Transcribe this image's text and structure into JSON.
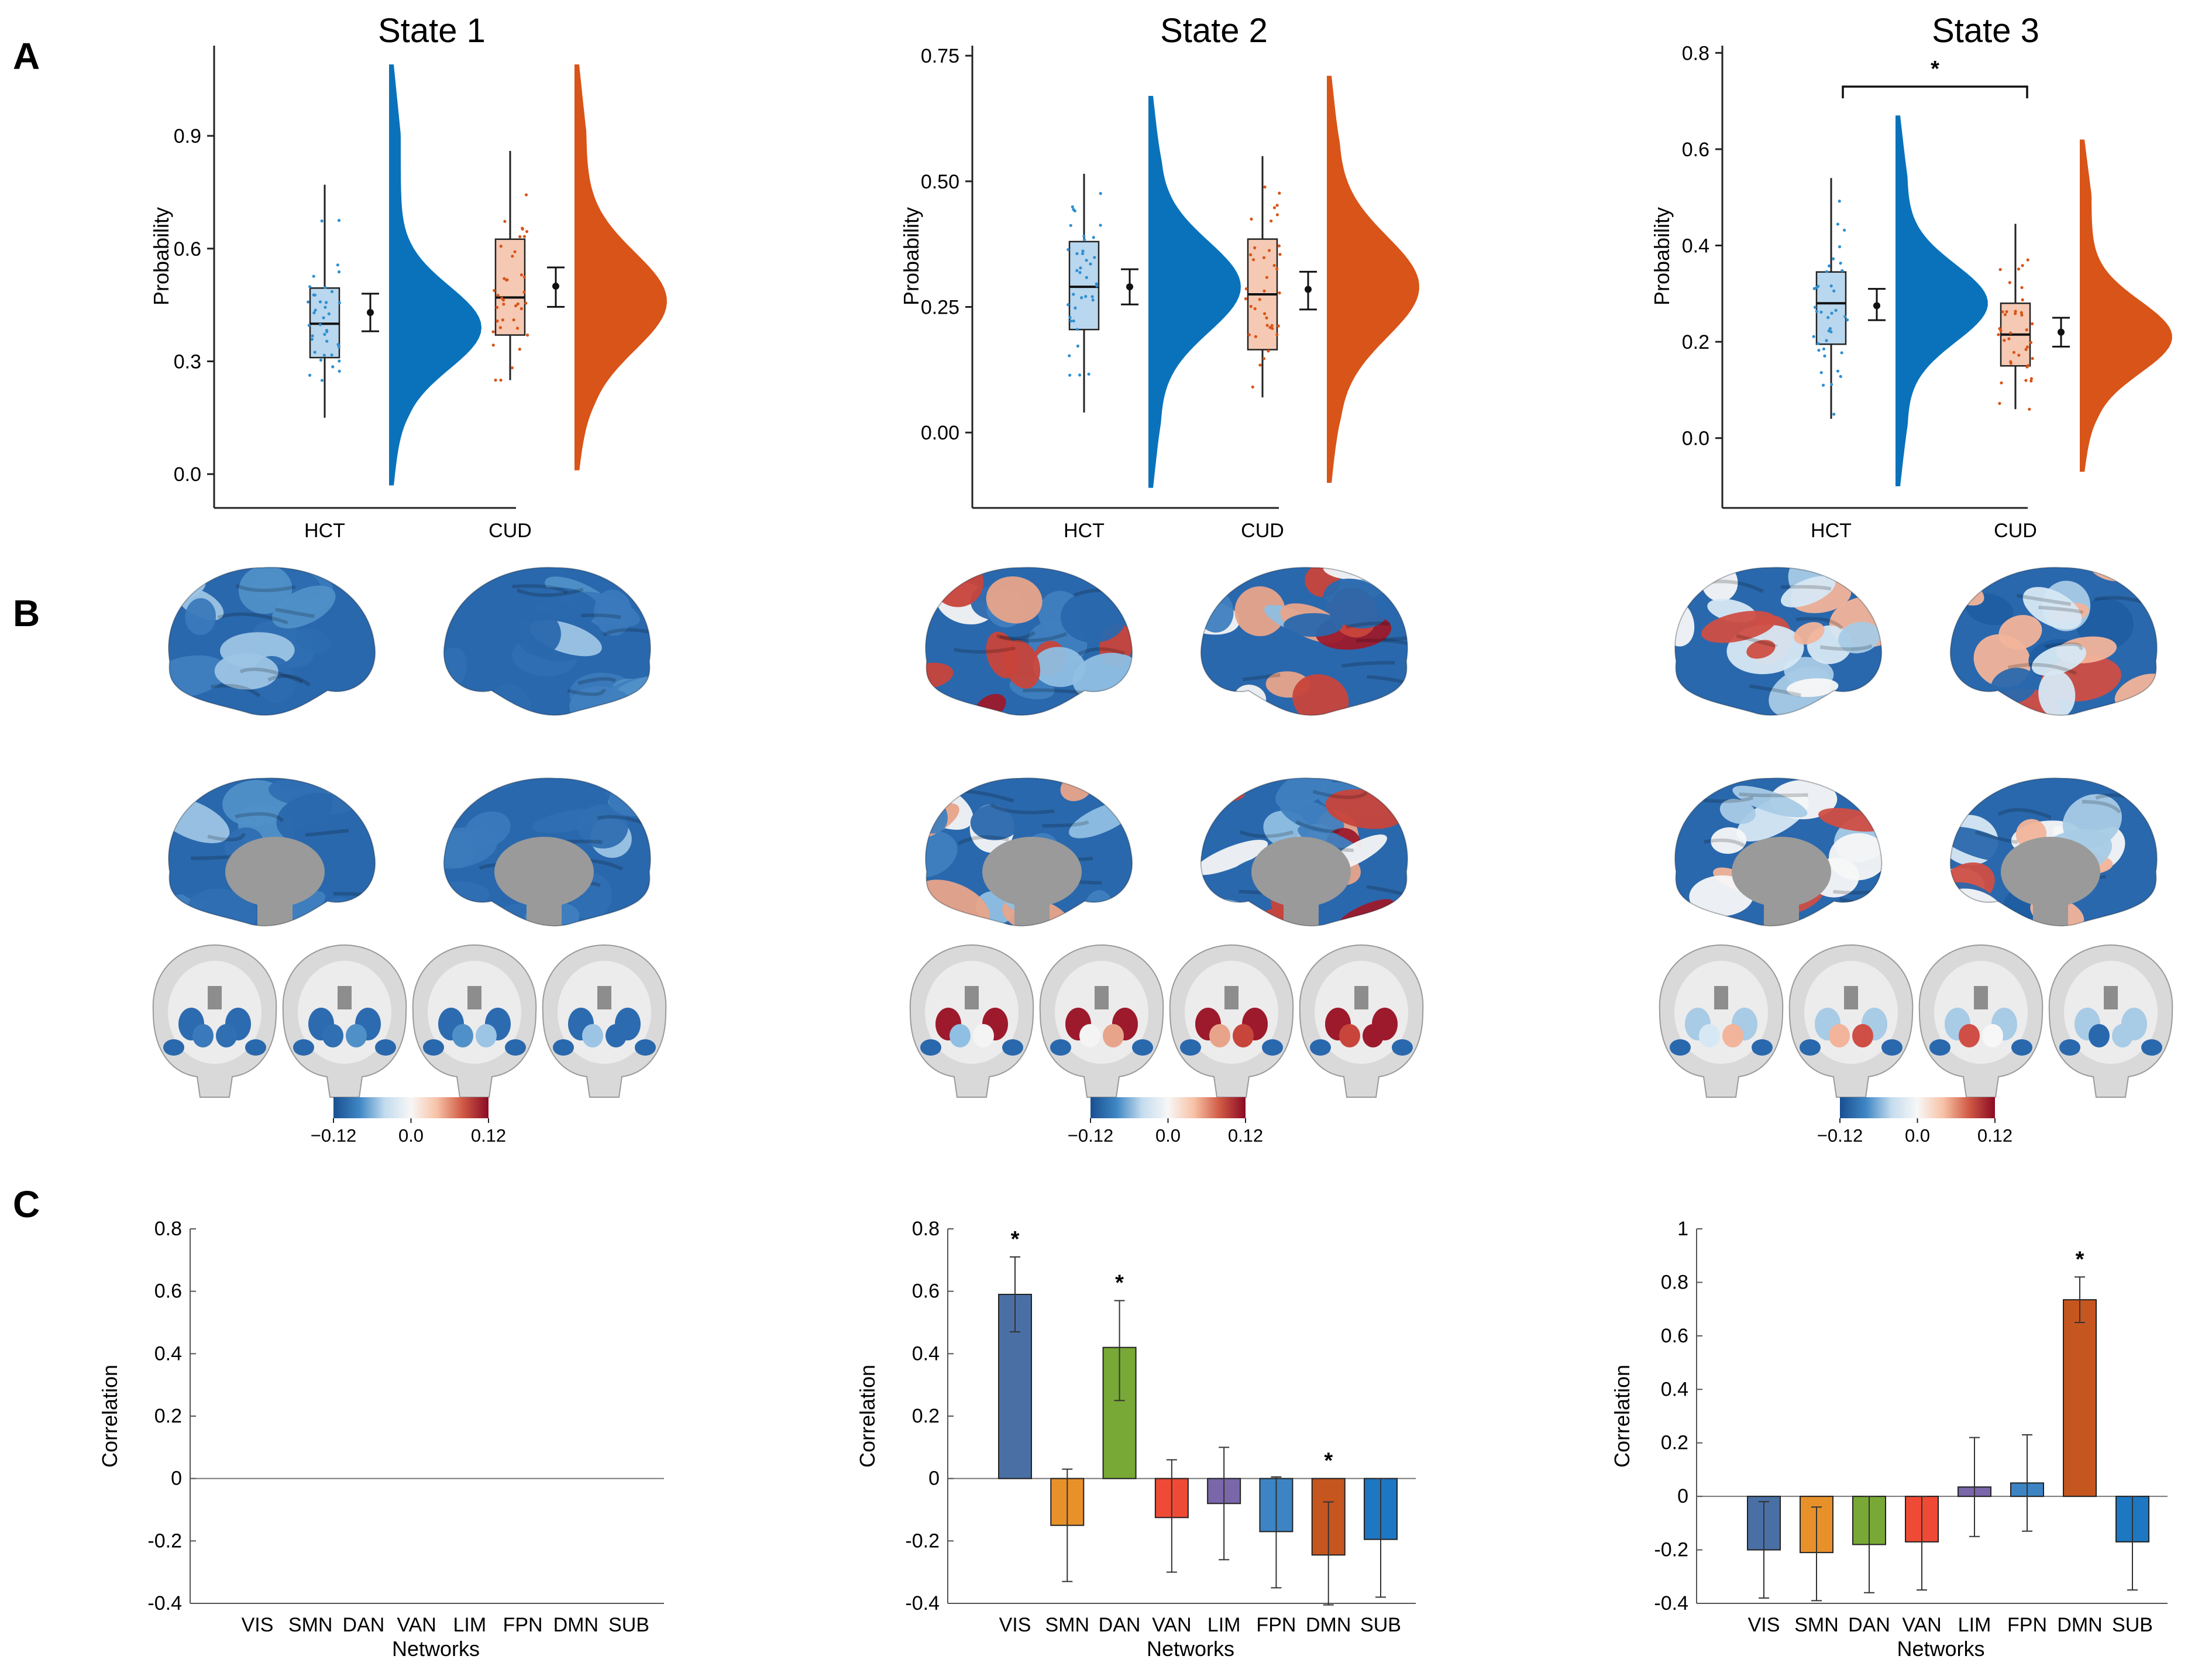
{
  "panel_letters": {
    "A": "A",
    "B": "B",
    "C": "C"
  },
  "colors": {
    "hct": "#0a72ba",
    "hct_box": "#b9d7ee",
    "hct_dot": "#2f8fd0",
    "cud": "#d85418",
    "cud_box": "#f5c9b3",
    "cud_dot": "#d85418",
    "axis": "#222222",
    "brain_gray": "#c8c8c8",
    "midwall": "#9a9a9a"
  },
  "chart_data": [
    {
      "id": "A1",
      "type": "raincloud",
      "title": "State 1",
      "ylabel": "Probability",
      "ylim": [
        -0.09,
        1.14
      ],
      "yticks": [
        0.0,
        0.3,
        0.6,
        0.9
      ],
      "ytick_labels": [
        "0.0",
        "0.3",
        "0.6",
        "0.9"
      ],
      "categories": [
        "HCT",
        "CUD"
      ],
      "groups": [
        {
          "name": "HCT",
          "box": {
            "q1": 0.31,
            "median": 0.4,
            "q3": 0.495,
            "whisker_low": 0.15,
            "whisker_high": 0.77
          },
          "mean": 0.43,
          "ci": [
            0.38,
            0.48
          ],
          "density_mode": 0.39,
          "density_sd": 0.11,
          "density_range": [
            -0.03,
            1.09
          ]
        },
        {
          "name": "CUD",
          "box": {
            "q1": 0.37,
            "median": 0.47,
            "q3": 0.625,
            "whisker_low": 0.25,
            "whisker_high": 0.86
          },
          "mean": 0.5,
          "ci": [
            0.445,
            0.55
          ],
          "density_mode": 0.46,
          "density_sd": 0.13,
          "density_range": [
            0.01,
            1.09
          ]
        }
      ],
      "significance": null
    },
    {
      "id": "A2",
      "type": "raincloud",
      "title": "State 2",
      "ylabel": "Probability",
      "ylim": [
        -0.15,
        0.77
      ],
      "yticks": [
        0.0,
        0.25,
        0.5,
        0.75
      ],
      "ytick_labels": [
        "0.00",
        "0.25",
        "0.50",
        "0.75"
      ],
      "categories": [
        "HCT",
        "CUD"
      ],
      "groups": [
        {
          "name": "HCT",
          "box": {
            "q1": 0.205,
            "median": 0.29,
            "q3": 0.38,
            "whisker_low": 0.04,
            "whisker_high": 0.515
          },
          "mean": 0.29,
          "ci": [
            0.255,
            0.325
          ],
          "density_mode": 0.29,
          "density_sd": 0.09,
          "density_range": [
            -0.11,
            0.67
          ]
        },
        {
          "name": "CUD",
          "box": {
            "q1": 0.165,
            "median": 0.275,
            "q3": 0.385,
            "whisker_low": 0.07,
            "whisker_high": 0.55
          },
          "mean": 0.285,
          "ci": [
            0.245,
            0.32
          ],
          "density_mode": 0.29,
          "density_sd": 0.1,
          "density_range": [
            -0.1,
            0.71
          ]
        }
      ],
      "significance": null
    },
    {
      "id": "A3",
      "type": "raincloud",
      "title": "State 3",
      "ylabel": "Probability",
      "ylim": [
        -0.145,
        0.815
      ],
      "yticks": [
        0.0,
        0.2,
        0.4,
        0.6,
        0.8
      ],
      "ytick_labels": [
        "0.0",
        "0.2",
        "0.4",
        "0.6",
        "0.8"
      ],
      "categories": [
        "HCT",
        "CUD"
      ],
      "groups": [
        {
          "name": "HCT",
          "box": {
            "q1": 0.195,
            "median": 0.28,
            "q3": 0.345,
            "whisker_low": 0.04,
            "whisker_high": 0.54
          },
          "mean": 0.275,
          "ci": [
            0.245,
            0.31
          ],
          "density_mode": 0.28,
          "density_sd": 0.08,
          "density_range": [
            -0.1,
            0.67
          ]
        },
        {
          "name": "CUD",
          "box": {
            "q1": 0.15,
            "median": 0.215,
            "q3": 0.28,
            "whisker_low": 0.06,
            "whisker_high": 0.445
          },
          "mean": 0.22,
          "ci": [
            0.19,
            0.25
          ],
          "density_mode": 0.21,
          "density_sd": 0.075,
          "density_range": [
            -0.07,
            0.62
          ]
        }
      ],
      "significance": {
        "between": [
          "HCT",
          "CUD"
        ],
        "label": "*",
        "level": 0.73
      }
    },
    {
      "id": "C1",
      "type": "bar",
      "title": "",
      "xlabel": "Networks",
      "ylabel": "Correlation",
      "ylim": [
        -0.4,
        0.8
      ],
      "yticks": [
        -0.4,
        -0.2,
        0,
        0.2,
        0.4,
        0.6,
        0.8
      ],
      "ytick_labels": [
        "-0.4",
        "-0.2",
        "0",
        "0.2",
        "0.4",
        "0.6",
        "0.8"
      ],
      "categories": [
        "VIS",
        "SMN",
        "DAN",
        "VAN",
        "LIM",
        "FPN",
        "DMN",
        "SUB"
      ],
      "values": [
        0,
        0,
        0,
        0,
        0,
        0,
        0,
        0
      ],
      "errors": [
        null,
        null,
        null,
        null,
        null,
        null,
        null,
        null
      ],
      "significant": [
        false,
        false,
        false,
        false,
        false,
        false,
        false,
        false
      ],
      "star_label": "*"
    },
    {
      "id": "C2",
      "type": "bar",
      "title": "",
      "xlabel": "Networks",
      "ylabel": "Correlation",
      "ylim": [
        -0.4,
        0.8
      ],
      "yticks": [
        -0.4,
        -0.2,
        0,
        0.2,
        0.4,
        0.6,
        0.8
      ],
      "ytick_labels": [
        "-0.4",
        "-0.2",
        "0",
        "0.2",
        "0.4",
        "0.6",
        "0.8"
      ],
      "categories": [
        "VIS",
        "SMN",
        "DAN",
        "VAN",
        "LIM",
        "FPN",
        "DMN",
        "SUB"
      ],
      "values": [
        0.59,
        -0.15,
        0.42,
        -0.125,
        -0.08,
        -0.17,
        -0.245,
        -0.195
      ],
      "errors": [
        [
          0.47,
          0.71
        ],
        [
          -0.33,
          0.03
        ],
        [
          0.25,
          0.57
        ],
        [
          -0.3,
          0.06
        ],
        [
          -0.26,
          0.1
        ],
        [
          -0.35,
          0.005
        ],
        [
          -0.405,
          -0.075
        ],
        [
          -0.38,
          0.0
        ]
      ],
      "significant": [
        true,
        false,
        true,
        false,
        false,
        false,
        true,
        false
      ],
      "star_label": "*"
    },
    {
      "id": "C3",
      "type": "bar",
      "title": "",
      "xlabel": "Networks",
      "ylabel": "Correlation",
      "ylim": [
        -0.4,
        1.0
      ],
      "yticks": [
        -0.4,
        -0.2,
        0,
        0.2,
        0.4,
        0.6,
        0.8,
        1
      ],
      "ytick_labels": [
        "-0.4",
        "-0.2",
        "0",
        "0.2",
        "0.4",
        "0.6",
        "0.8",
        "1"
      ],
      "categories": [
        "VIS",
        "SMN",
        "DAN",
        "VAN",
        "LIM",
        "FPN",
        "DMN",
        "SUB"
      ],
      "values": [
        -0.2,
        -0.21,
        -0.18,
        -0.17,
        0.035,
        0.05,
        0.735,
        -0.17
      ],
      "errors": [
        [
          -0.38,
          -0.02
        ],
        [
          -0.39,
          -0.04
        ],
        [
          -0.36,
          0.0
        ],
        [
          -0.35,
          0.0
        ],
        [
          -0.15,
          0.22
        ],
        [
          -0.13,
          0.23
        ],
        [
          0.65,
          0.82
        ],
        [
          -0.35,
          0.0
        ]
      ],
      "significant": [
        false,
        false,
        false,
        false,
        false,
        false,
        true,
        false
      ],
      "star_label": "*"
    }
  ],
  "network_colors": [
    "#4a6fa5",
    "#e8912b",
    "#78a836",
    "#ef4a35",
    "#7a67aa",
    "#3d84c4",
    "#c6561f",
    "#1d77c2"
  ],
  "colorbars": [
    {
      "id": "cb1",
      "ticks": [
        "−0.12",
        "0.0",
        "0.12"
      ],
      "range": [
        -0.12,
        0.12
      ],
      "stops": [
        "#1a4f90",
        "#3e86c4",
        "#c4dcee",
        "#f7f7f7",
        "#f7c2a6",
        "#d05a45",
        "#8b0a24"
      ]
    },
    {
      "id": "cb2",
      "ticks": [
        "−0.12",
        "0.0",
        "0.12"
      ],
      "range": [
        -0.12,
        0.12
      ],
      "stops": [
        "#1a4f90",
        "#3e86c4",
        "#c4dcee",
        "#f7f7f7",
        "#f7c2a6",
        "#d05a45",
        "#8b0a24"
      ]
    },
    {
      "id": "cb3",
      "ticks": [
        "−0.12",
        "0.0",
        "0.12"
      ],
      "range": [
        -0.12,
        0.12
      ],
      "stops": [
        "#1a4f90",
        "#3e86c4",
        "#c4dcee",
        "#f7f7f7",
        "#f7c2a6",
        "#d05a45",
        "#8b0a24"
      ]
    }
  ],
  "brain_maps": [
    {
      "state": "State 1",
      "palette": [
        "#2a68ad",
        "#3a79bb",
        "#2f6fb2",
        "#5090c8",
        "#9cc4e4",
        "#2c6bb0",
        "#3f7fbf"
      ]
    },
    {
      "state": "State 2",
      "palette": [
        "#2a68ad",
        "#8fbfe2",
        "#f4f4f4",
        "#e8a48a",
        "#c8453b",
        "#9c1a2c",
        "#3f7fbf"
      ]
    },
    {
      "state": "State 3",
      "palette": [
        "#2a68ad",
        "#d6e8f4",
        "#f2b49a",
        "#cf4e45",
        "#f7f7f7",
        "#a8cbe6",
        "#1f5ea2"
      ]
    }
  ]
}
